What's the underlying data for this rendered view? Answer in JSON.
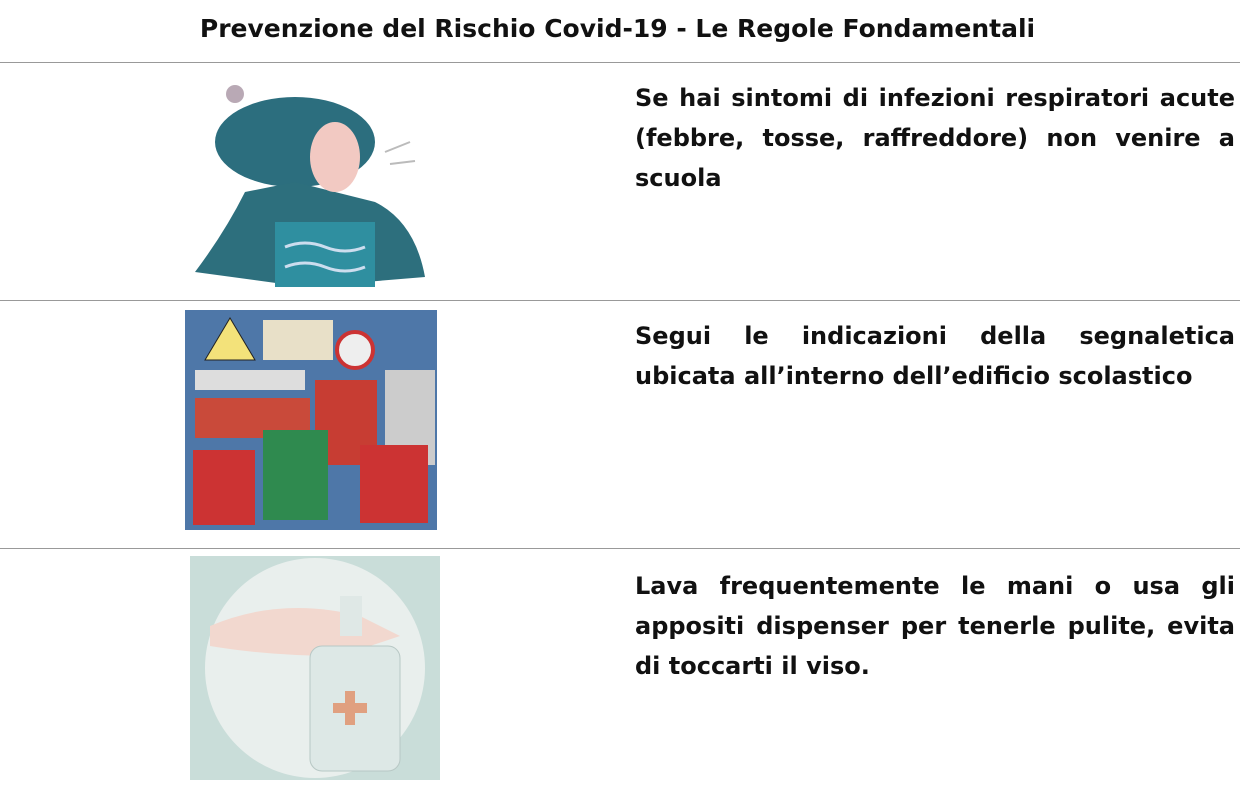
{
  "header": {
    "title": "Prevenzione del Rischio Covid-19 - Le Regole Fondamentali"
  },
  "rows": [
    {
      "text": "Se hai sintomi di infezioni respiratori acute (febbre, tosse, raffreddore) non venire a scuola"
    },
    {
      "text": "Segui le indicazioni della segnaletica ubicata all’interno dell’edificio scolastico"
    },
    {
      "text": "Lava frequentemente le mani o usa gli appositi dispenser per tenerle pulite, evita di toccarti il viso."
    }
  ]
}
